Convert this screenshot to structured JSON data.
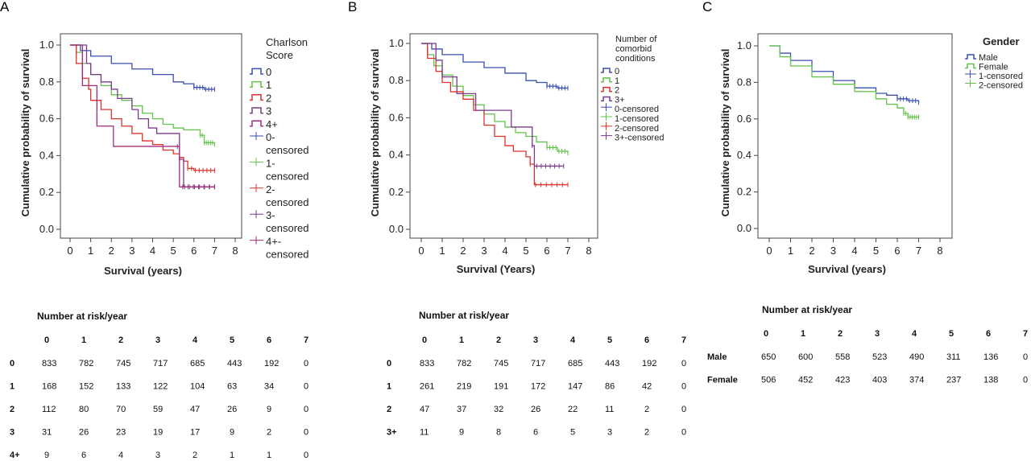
{
  "colors": {
    "blue": "#3a4fb0",
    "green": "#62c24a",
    "red": "#e0312c",
    "purple": "#7b3a8c",
    "magenta": "#a02d7a"
  },
  "chart_data": [
    {
      "type": "line",
      "panel": "A",
      "xlabel": "Survival (years)",
      "ylabel": "Cumulative probability of survival",
      "xlim": [
        0,
        8
      ],
      "ylim": [
        0,
        1
      ],
      "xticks": [
        "0",
        "1",
        "2",
        "3",
        "4",
        "5",
        "6",
        "7",
        "8"
      ],
      "yticks": [
        "0.0",
        "0.2",
        "0.4",
        "0.6",
        "0.8",
        "1.0"
      ],
      "legend_title": "Charlson Score",
      "legend": [
        "0",
        "1",
        "2",
        "3",
        "4+",
        "0-censored",
        "1-censored",
        "2-censored",
        "3-censored",
        "4+-censored"
      ],
      "series": [
        {
          "name": "0",
          "color": "#3a4fb0",
          "points": [
            [
              0,
              1
            ],
            [
              0.5,
              0.97
            ],
            [
              1,
              0.94
            ],
            [
              2,
              0.9
            ],
            [
              3,
              0.87
            ],
            [
              4,
              0.84
            ],
            [
              5,
              0.8
            ],
            [
              5.5,
              0.79
            ],
            [
              6,
              0.77
            ],
            [
              6.5,
              0.76
            ],
            [
              7,
              0.76
            ]
          ]
        },
        {
          "name": "1",
          "color": "#62c24a",
          "points": [
            [
              0,
              1
            ],
            [
              0.3,
              0.96
            ],
            [
              0.6,
              0.9
            ],
            [
              1,
              0.84
            ],
            [
              1.5,
              0.78
            ],
            [
              2,
              0.73
            ],
            [
              2.5,
              0.7
            ],
            [
              3,
              0.67
            ],
            [
              3.5,
              0.63
            ],
            [
              4,
              0.6
            ],
            [
              4.5,
              0.57
            ],
            [
              5,
              0.55
            ],
            [
              5.5,
              0.54
            ],
            [
              6,
              0.54
            ],
            [
              6.3,
              0.51
            ],
            [
              6.5,
              0.47
            ],
            [
              7,
              0.46
            ]
          ]
        },
        {
          "name": "2",
          "color": "#e0312c",
          "points": [
            [
              0,
              1
            ],
            [
              0.3,
              0.9
            ],
            [
              0.6,
              0.82
            ],
            [
              0.9,
              0.76
            ],
            [
              1,
              0.7
            ],
            [
              1.5,
              0.65
            ],
            [
              2,
              0.6
            ],
            [
              2.5,
              0.56
            ],
            [
              3,
              0.52
            ],
            [
              3.5,
              0.48
            ],
            [
              4,
              0.46
            ],
            [
              4.5,
              0.43
            ],
            [
              5,
              0.41
            ],
            [
              5.3,
              0.39
            ],
            [
              5.5,
              0.37
            ],
            [
              5.7,
              0.33
            ],
            [
              6,
              0.32
            ],
            [
              7,
              0.32
            ]
          ]
        },
        {
          "name": "3",
          "color": "#7b3a8c",
          "points": [
            [
              0,
              1
            ],
            [
              0.8,
              0.9
            ],
            [
              1,
              0.84
            ],
            [
              1.5,
              0.8
            ],
            [
              2,
              0.76
            ],
            [
              2.3,
              0.71
            ],
            [
              3,
              0.65
            ],
            [
              3.3,
              0.6
            ],
            [
              3.8,
              0.55
            ],
            [
              4.2,
              0.52
            ],
            [
              5,
              0.52
            ],
            [
              5.3,
              0.38
            ],
            [
              5.5,
              0.23
            ],
            [
              7,
              0.23
            ]
          ]
        },
        {
          "name": "4+",
          "color": "#a02d7a",
          "points": [
            [
              0,
              1
            ],
            [
              0.5,
              1
            ],
            [
              0.6,
              0.78
            ],
            [
              1,
              0.78
            ],
            [
              1.3,
              0.56
            ],
            [
              2,
              0.56
            ],
            [
              2.1,
              0.45
            ],
            [
              5.2,
              0.45
            ],
            [
              5.3,
              0.23
            ],
            [
              7,
              0.23
            ]
          ]
        }
      ],
      "risk_table": {
        "title": "Number at risk/year",
        "columns": [
          "0",
          "1",
          "2",
          "3",
          "4",
          "5",
          "6",
          "7"
        ],
        "rows": [
          {
            "label": "0",
            "values": [
              "833",
              "782",
              "745",
              "717",
              "685",
              "443",
              "192",
              "0"
            ]
          },
          {
            "label": "1",
            "values": [
              "168",
              "152",
              "133",
              "122",
              "104",
              "63",
              "34",
              "0"
            ]
          },
          {
            "label": "2",
            "values": [
              "112",
              "80",
              "70",
              "59",
              "47",
              "26",
              "9",
              "0"
            ]
          },
          {
            "label": "3",
            "values": [
              "31",
              "26",
              "23",
              "19",
              "17",
              "9",
              "2",
              "0"
            ]
          },
          {
            "label": "4+",
            "values": [
              "9",
              "6",
              "4",
              "3",
              "2",
              "1",
              "1",
              "0"
            ]
          }
        ]
      }
    },
    {
      "type": "line",
      "panel": "B",
      "xlabel": "Survival (Years)",
      "ylabel": "Cumulative probability of survival",
      "xlim": [
        0,
        8
      ],
      "ylim": [
        0,
        1
      ],
      "xticks": [
        "0",
        "1",
        "2",
        "3",
        "4",
        "5",
        "6",
        "7",
        "8"
      ],
      "yticks": [
        "0.0",
        "0.2",
        "0.4",
        "0.6",
        "0.8",
        "1.0"
      ],
      "legend_title": "Number of comorbid conditions",
      "legend": [
        "0",
        "1",
        "2",
        "3+",
        "0-censored",
        "1-censored",
        "2-censored",
        "3+-censored"
      ],
      "series": [
        {
          "name": "0",
          "color": "#3a4fb0",
          "points": [
            [
              0,
              1
            ],
            [
              0.5,
              0.97
            ],
            [
              1,
              0.94
            ],
            [
              2,
              0.9
            ],
            [
              3,
              0.87
            ],
            [
              4,
              0.84
            ],
            [
              5,
              0.8
            ],
            [
              5.5,
              0.79
            ],
            [
              6,
              0.77
            ],
            [
              6.5,
              0.76
            ],
            [
              7,
              0.76
            ]
          ]
        },
        {
          "name": "1",
          "color": "#62c24a",
          "points": [
            [
              0,
              1
            ],
            [
              0.3,
              0.94
            ],
            [
              0.6,
              0.88
            ],
            [
              1,
              0.83
            ],
            [
              1.5,
              0.77
            ],
            [
              2,
              0.72
            ],
            [
              2.5,
              0.67
            ],
            [
              3,
              0.62
            ],
            [
              3.5,
              0.58
            ],
            [
              4,
              0.55
            ],
            [
              4.5,
              0.52
            ],
            [
              5,
              0.5
            ],
            [
              5.5,
              0.47
            ],
            [
              6,
              0.44
            ],
            [
              6.5,
              0.42
            ],
            [
              7,
              0.41
            ]
          ]
        },
        {
          "name": "2",
          "color": "#e0312c",
          "points": [
            [
              0,
              1
            ],
            [
              0.3,
              0.92
            ],
            [
              0.7,
              0.85
            ],
            [
              1,
              0.79
            ],
            [
              1.4,
              0.74
            ],
            [
              2,
              0.7
            ],
            [
              2.5,
              0.64
            ],
            [
              3,
              0.56
            ],
            [
              3.5,
              0.5
            ],
            [
              4,
              0.45
            ],
            [
              4.4,
              0.42
            ],
            [
              5,
              0.39
            ],
            [
              5.2,
              0.35
            ],
            [
              5.4,
              0.24
            ],
            [
              7,
              0.24
            ]
          ]
        },
        {
          "name": "3+",
          "color": "#7b3a8c",
          "points": [
            [
              0,
              1
            ],
            [
              0.6,
              1
            ],
            [
              0.7,
              0.91
            ],
            [
              1,
              0.82
            ],
            [
              1.6,
              0.82
            ],
            [
              1.7,
              0.73
            ],
            [
              2.5,
              0.73
            ],
            [
              2.6,
              0.64
            ],
            [
              4.2,
              0.64
            ],
            [
              4.3,
              0.55
            ],
            [
              5.1,
              0.55
            ],
            [
              5.3,
              0.45
            ],
            [
              5.4,
              0.34
            ],
            [
              6.8,
              0.34
            ]
          ]
        }
      ],
      "risk_table": {
        "title": "Number at risk/year",
        "columns": [
          "0",
          "1",
          "2",
          "3",
          "4",
          "5",
          "6",
          "7"
        ],
        "rows": [
          {
            "label": "0",
            "values": [
              "833",
              "782",
              "745",
              "717",
              "685",
              "443",
              "192",
              "0"
            ]
          },
          {
            "label": "1",
            "values": [
              "261",
              "219",
              "191",
              "172",
              "147",
              "86",
              "42",
              "0"
            ]
          },
          {
            "label": "2",
            "values": [
              "47",
              "37",
              "32",
              "26",
              "22",
              "11",
              "2",
              "0"
            ]
          },
          {
            "label": "3+",
            "values": [
              "11",
              "9",
              "8",
              "6",
              "5",
              "3",
              "2",
              "0"
            ]
          }
        ]
      }
    },
    {
      "type": "line",
      "panel": "C",
      "xlabel": "Survival (years)",
      "ylabel": "Cumulative probability of survival",
      "xlim": [
        0,
        8
      ],
      "ylim": [
        0,
        1
      ],
      "xticks": [
        "0",
        "1",
        "2",
        "3",
        "4",
        "5",
        "6",
        "7",
        "8"
      ],
      "yticks": [
        "0.0",
        "0.2",
        "0.4",
        "0.6",
        "0.8",
        "1.0"
      ],
      "legend_title": "Gender",
      "legend": [
        "Male",
        "Female",
        "1-censored",
        "2-censored"
      ],
      "series": [
        {
          "name": "Male",
          "color": "#3a4fb0",
          "points": [
            [
              0,
              1
            ],
            [
              0.5,
              0.96
            ],
            [
              1,
              0.92
            ],
            [
              2,
              0.86
            ],
            [
              3,
              0.81
            ],
            [
              4,
              0.77
            ],
            [
              5,
              0.74
            ],
            [
              5.5,
              0.73
            ],
            [
              6,
              0.71
            ],
            [
              6.5,
              0.7
            ],
            [
              7,
              0.69
            ]
          ]
        },
        {
          "name": "Female",
          "color": "#62c24a",
          "points": [
            [
              0,
              1
            ],
            [
              0.5,
              0.94
            ],
            [
              1,
              0.89
            ],
            [
              2,
              0.83
            ],
            [
              3,
              0.79
            ],
            [
              4,
              0.75
            ],
            [
              5,
              0.71
            ],
            [
              5.5,
              0.68
            ],
            [
              6,
              0.66
            ],
            [
              6.3,
              0.63
            ],
            [
              6.5,
              0.61
            ],
            [
              7,
              0.61
            ]
          ]
        }
      ],
      "risk_table": {
        "title": "Number at risk/year",
        "columns": [
          "0",
          "1",
          "2",
          "3",
          "4",
          "5",
          "6",
          "7"
        ],
        "rows": [
          {
            "label": "Male",
            "values": [
              "650",
              "600",
              "558",
              "523",
              "490",
              "311",
              "136",
              "0"
            ]
          },
          {
            "label": "Female",
            "values": [
              "506",
              "452",
              "423",
              "403",
              "374",
              "237",
              "138",
              "0"
            ]
          }
        ]
      }
    }
  ]
}
